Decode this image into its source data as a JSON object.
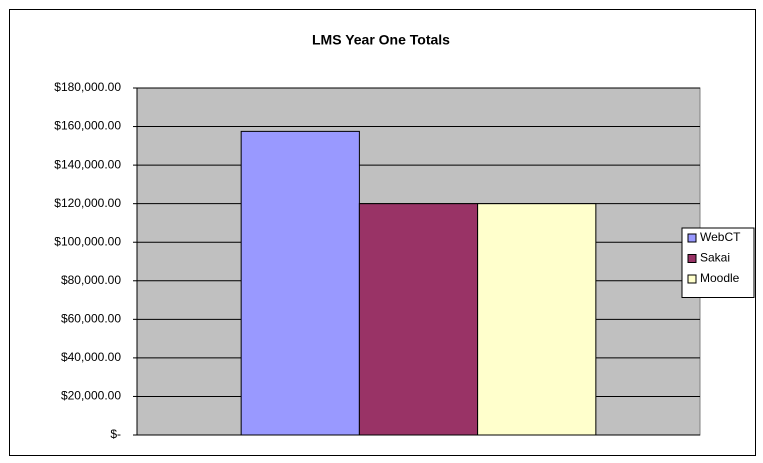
{
  "chart_data": {
    "type": "bar",
    "title": "LMS Year One Totals",
    "categories": [
      null
    ],
    "series": [
      {
        "name": "WebCT",
        "color": "#9999ff",
        "values": [
          157500
        ]
      },
      {
        "name": "Sakai",
        "color": "#993366",
        "values": [
          120000
        ]
      },
      {
        "name": "Moodle",
        "color": "#ffffcc",
        "values": [
          120000
        ]
      }
    ],
    "ylim": [
      0,
      180000
    ],
    "yticks": [
      {
        "value": 0,
        "label": "$-"
      },
      {
        "value": 20000,
        "label": "$20,000.00"
      },
      {
        "value": 40000,
        "label": "$40,000.00"
      },
      {
        "value": 60000,
        "label": "$60,000.00"
      },
      {
        "value": 80000,
        "label": "$80,000.00"
      },
      {
        "value": 100000,
        "label": "$100,000.00"
      },
      {
        "value": 120000,
        "label": "$120,000.00"
      },
      {
        "value": 140000,
        "label": "$140,000.00"
      },
      {
        "value": 160000,
        "label": "$160,000.00"
      },
      {
        "value": 180000,
        "label": "$180,000.00"
      }
    ],
    "grid": true,
    "legend": "right"
  }
}
